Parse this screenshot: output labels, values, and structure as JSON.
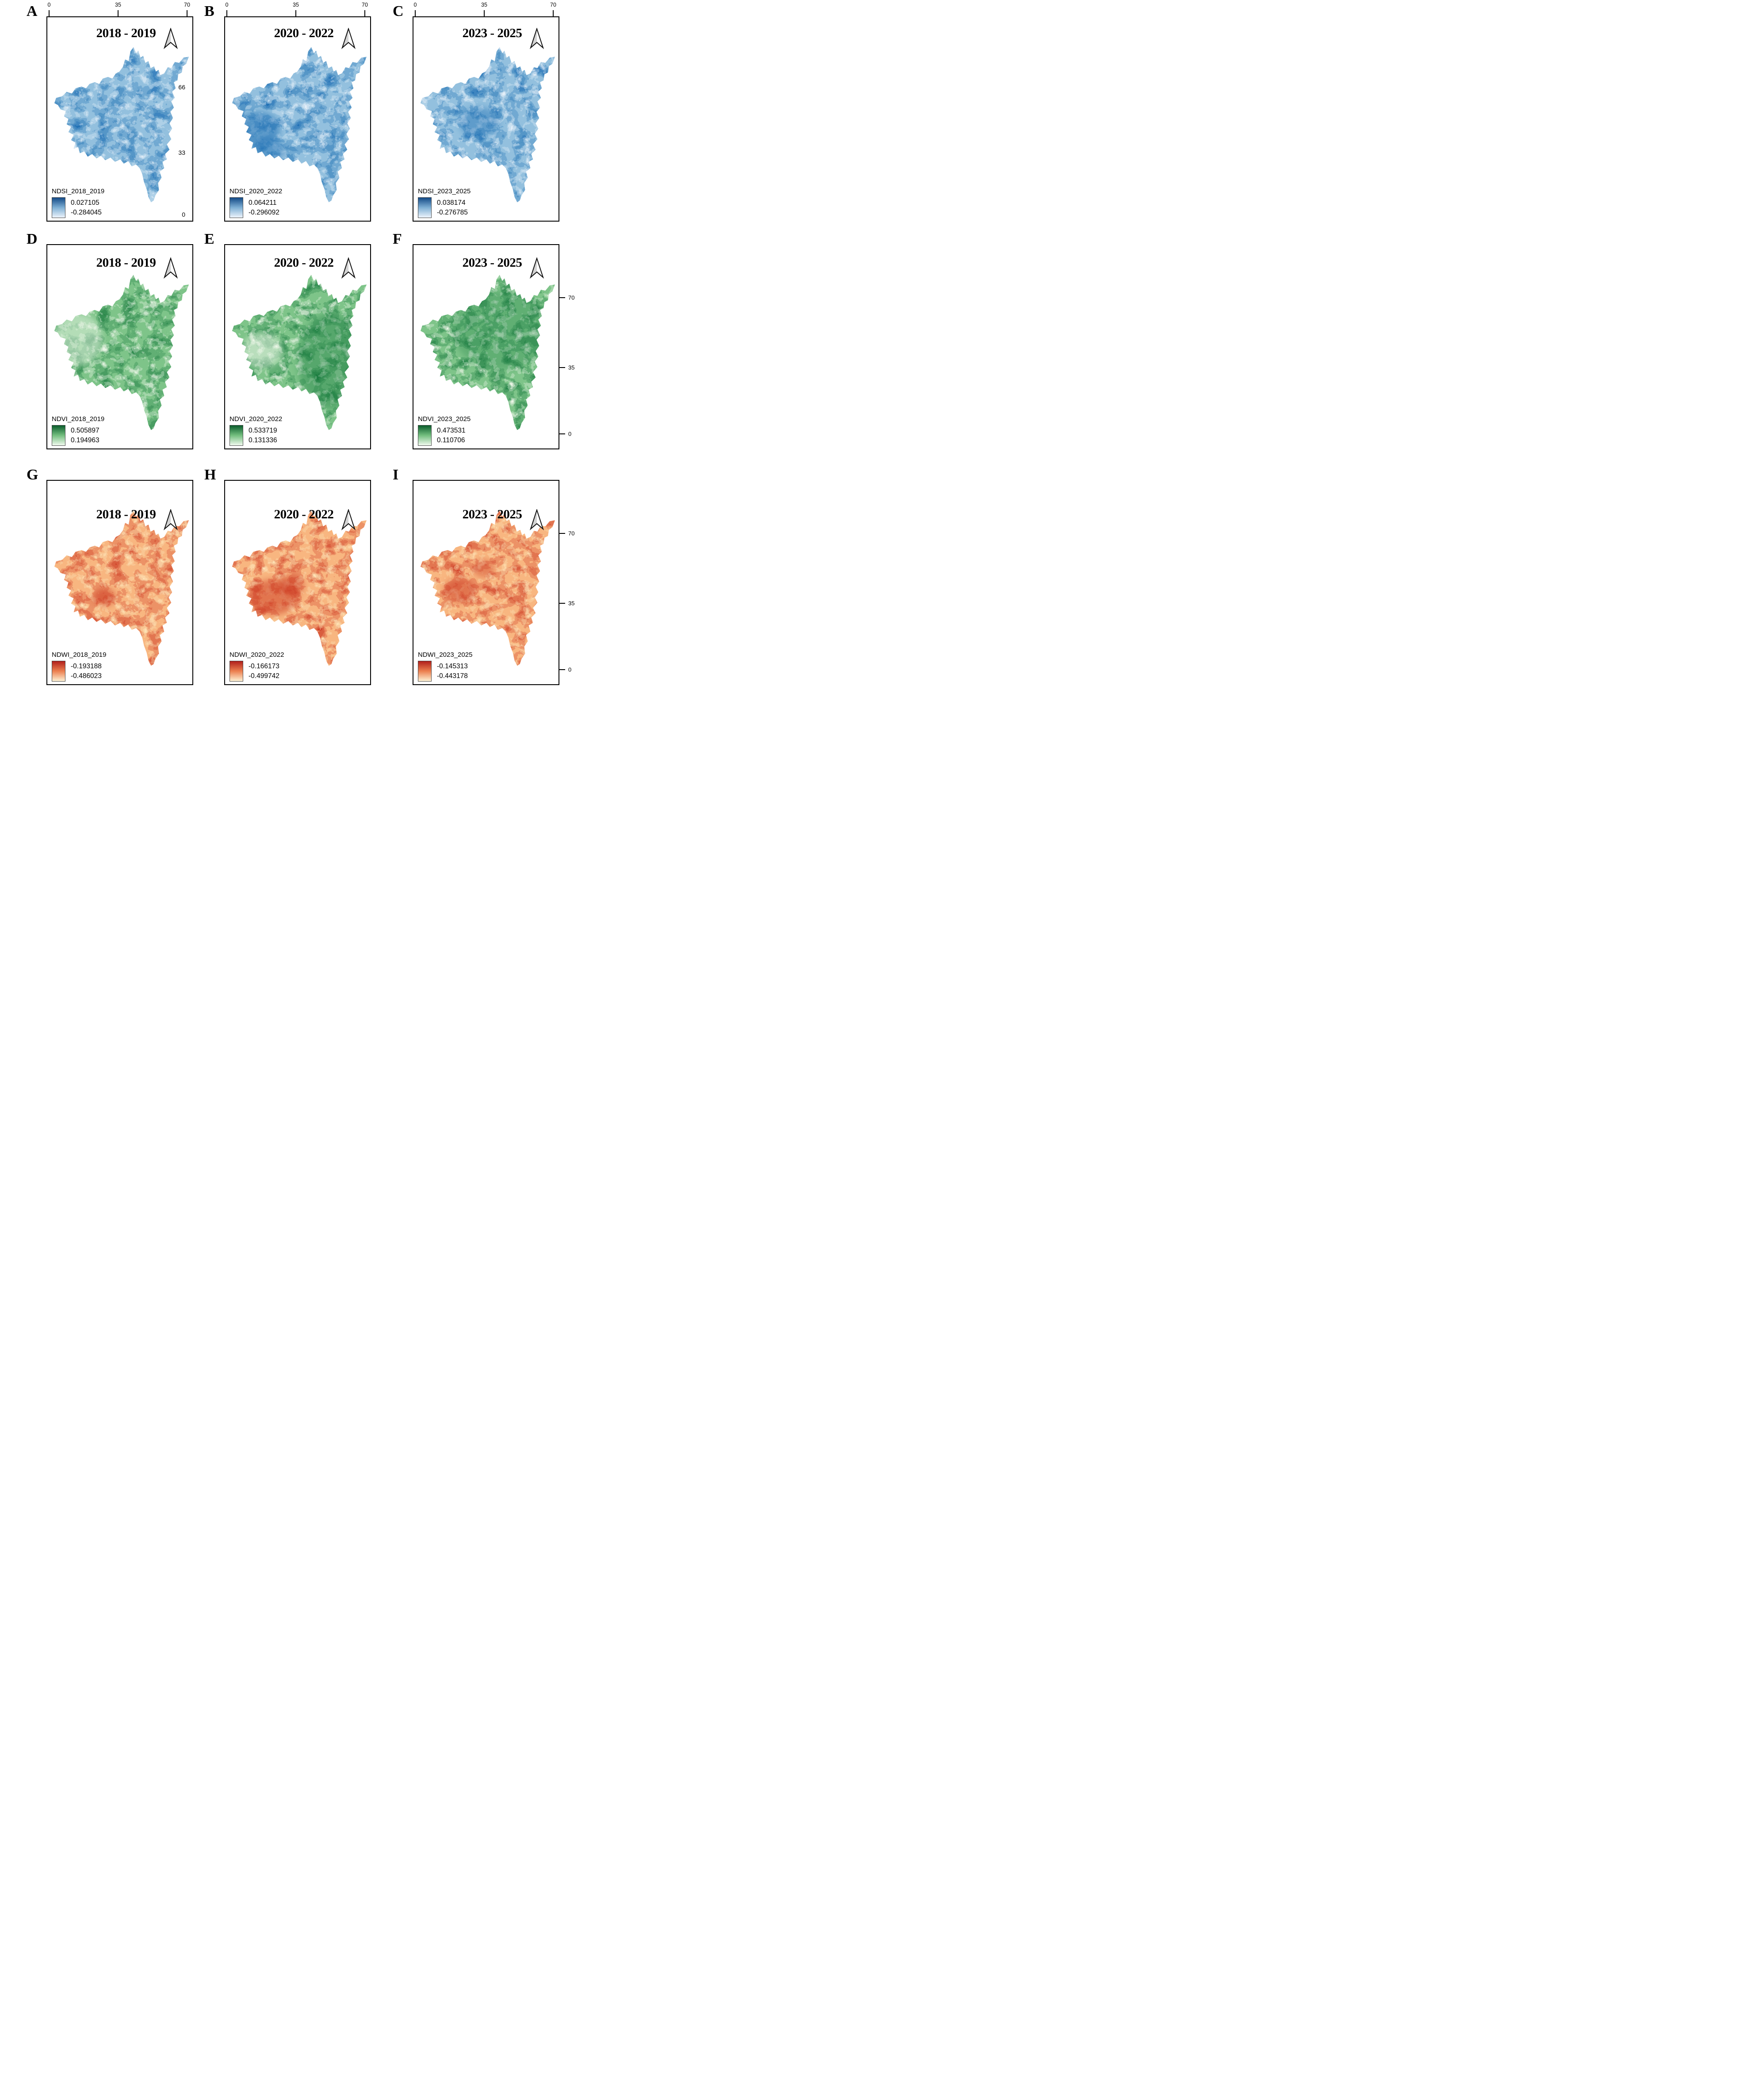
{
  "figure": {
    "panels": [
      {
        "letter": "A",
        "title": "2018 - 2019",
        "scheme": "blue",
        "legend": {
          "title": "NDSI_2018_2019",
          "max": "0.027105",
          "min": "-0.284045"
        },
        "top_ticks": [
          "0",
          "35",
          "70"
        ],
        "inner_right_labels": [
          "66",
          "33",
          "0"
        ]
      },
      {
        "letter": "B",
        "title": "2020 - 2022",
        "scheme": "blue",
        "legend": {
          "title": "NDSI_2020_2022",
          "max": "0.064211",
          "min": "-0.296092"
        },
        "top_ticks": [
          "0",
          "35",
          "70"
        ]
      },
      {
        "letter": "C",
        "title": "2023 - 2025",
        "scheme": "blue",
        "legend": {
          "title": "NDSI_2023_2025",
          "max": "0.038174",
          "min": "-0.276785"
        },
        "top_ticks": [
          "0",
          "35",
          "70"
        ]
      },
      {
        "letter": "D",
        "title": "2018 - 2019",
        "scheme": "green",
        "legend": {
          "title": "NDVI_2018_2019",
          "max": "0.505897",
          "min": "0.194963"
        }
      },
      {
        "letter": "E",
        "title": "2020 - 2022",
        "scheme": "green",
        "legend": {
          "title": "NDVI_2020_2022",
          "max": "0.533719",
          "min": "0.131336"
        }
      },
      {
        "letter": "F",
        "title": "2023 - 2025",
        "scheme": "green",
        "legend": {
          "title": "NDVI_2023_2025",
          "max": "0.473531",
          "min": "0.110706"
        },
        "right_ticks": [
          "70",
          "35",
          "0"
        ]
      },
      {
        "letter": "G",
        "title": "2018 - 2019",
        "scheme": "red",
        "legend": {
          "title": "NDWI_2018_2019",
          "max": "-0.193188",
          "min": "-0.486023"
        }
      },
      {
        "letter": "H",
        "title": "2020 - 2022",
        "scheme": "red",
        "legend": {
          "title": "NDWI_2020_2022",
          "max": "-0.166173",
          "min": "-0.499742"
        }
      },
      {
        "letter": "I",
        "title": "2023 - 2025",
        "scheme": "red",
        "legend": {
          "title": "NDWI_2023_2025",
          "max": "-0.145313",
          "min": "-0.443178"
        },
        "right_ticks": [
          "70",
          "35",
          "0"
        ]
      }
    ],
    "schemes": {
      "blue": {
        "map_base": "#93c0de",
        "map_dark": "#2272b5",
        "map_light": "#e3eef8",
        "legend_top": "#134a86",
        "legend_mid": "#7fb0d5",
        "legend_bottom": "#edf4fb"
      },
      "green": {
        "map_base": "#7ec489",
        "map_dark": "#1e7e42",
        "map_light": "#e9f5e5",
        "legend_top": "#0a5c2c",
        "legend_mid": "#74bf7f",
        "legend_bottom": "#f0f9ee"
      },
      "red": {
        "map_base": "#f8b680",
        "map_dark": "#cf3f28",
        "map_light": "#fde2b4",
        "legend_top": "#b11f1c",
        "legend_mid": "#ec8050",
        "legend_bottom": "#fdf1d4"
      }
    }
  }
}
